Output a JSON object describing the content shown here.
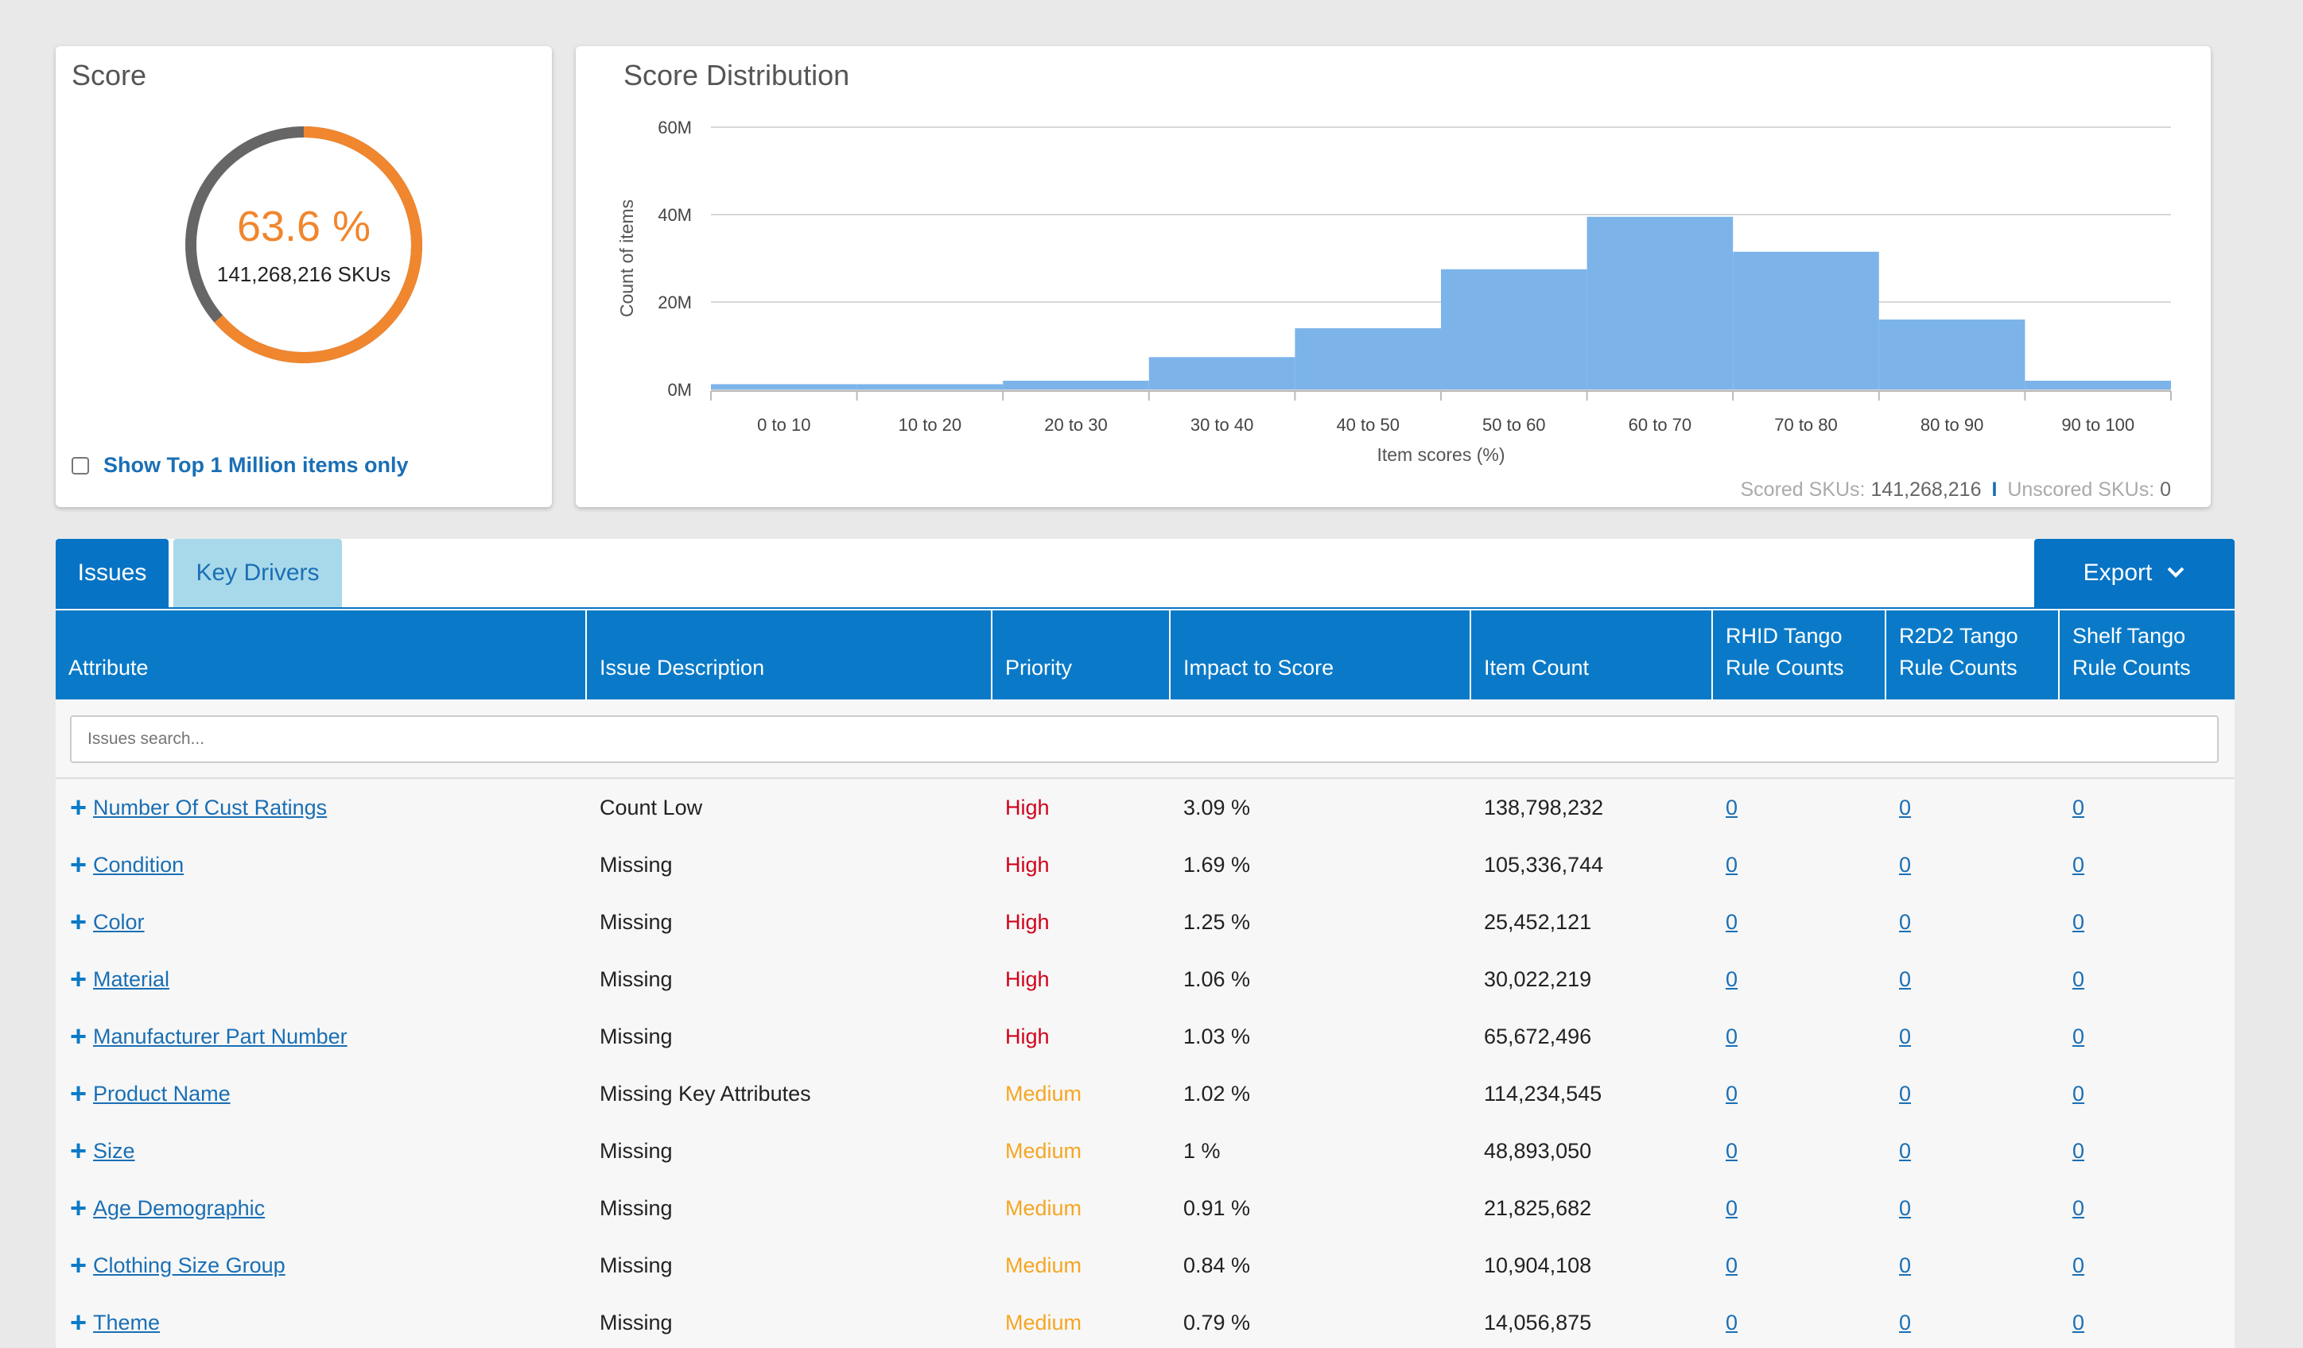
{
  "score": {
    "title": "Score",
    "percent_label": "63.6 %",
    "percent": 63.6,
    "skus_label": "141,268,216 SKUs",
    "top_toggle_label": "Show Top 1 Million items only",
    "colors": {
      "filled": "#f0862e",
      "rest": "#666666"
    }
  },
  "distribution": {
    "title": "Score Distribution",
    "footer": {
      "scored_label": "Scored SKUs:",
      "scored_value": "141,268,216",
      "separator": "I",
      "unscored_label": "Unscored SKUs:",
      "unscored_value": "0"
    }
  },
  "chart_data": {
    "type": "bar",
    "title": "Score Distribution",
    "xlabel": "Item scores (%)",
    "ylabel": "Count of items",
    "categories": [
      "0 to 10",
      "10 to 20",
      "20 to 30",
      "30 to 40",
      "40 to 50",
      "50 to 60",
      "60 to 70",
      "70 to 80",
      "80 to 90",
      "90 to 100"
    ],
    "values": [
      1.2,
      1.2,
      2.0,
      7.4,
      14.0,
      27.5,
      39.5,
      31.5,
      16.0,
      2.0
    ],
    "value_units": "M",
    "yticks": [
      "0M",
      "20M",
      "40M",
      "60M"
    ],
    "ylim": [
      0,
      60
    ],
    "grid": true,
    "bar_color": "#7cb4ea"
  },
  "tabs": {
    "issues": "Issues",
    "key_drivers": "Key Drivers",
    "export": "Export"
  },
  "table": {
    "headers": [
      "Attribute",
      "Issue Description",
      "Priority",
      "Impact to Score",
      "Item Count",
      "RHID Tango Rule Counts",
      "R2D2 Tango Rule Counts",
      "Shelf Tango Rule Counts"
    ],
    "search_placeholder": "Issues search...",
    "priority_colors": {
      "High": "#d0021b",
      "Medium": "#f5a623"
    },
    "rows": [
      {
        "attribute": "Number Of Cust Ratings",
        "issue": "Count Low",
        "priority": "High",
        "impact": "3.09 %",
        "count": "138,798,232",
        "rhid": "0",
        "r2d2": "0",
        "shelf": "0"
      },
      {
        "attribute": "Condition",
        "issue": "Missing",
        "priority": "High",
        "impact": "1.69 %",
        "count": "105,336,744",
        "rhid": "0",
        "r2d2": "0",
        "shelf": "0"
      },
      {
        "attribute": "Color",
        "issue": "Missing",
        "priority": "High",
        "impact": "1.25 %",
        "count": "25,452,121",
        "rhid": "0",
        "r2d2": "0",
        "shelf": "0"
      },
      {
        "attribute": "Material",
        "issue": "Missing",
        "priority": "High",
        "impact": "1.06 %",
        "count": "30,022,219",
        "rhid": "0",
        "r2d2": "0",
        "shelf": "0"
      },
      {
        "attribute": "Manufacturer Part Number",
        "issue": "Missing",
        "priority": "High",
        "impact": "1.03 %",
        "count": "65,672,496",
        "rhid": "0",
        "r2d2": "0",
        "shelf": "0"
      },
      {
        "attribute": "Product Name",
        "issue": "Missing Key Attributes",
        "priority": "Medium",
        "impact": "1.02 %",
        "count": "114,234,545",
        "rhid": "0",
        "r2d2": "0",
        "shelf": "0"
      },
      {
        "attribute": "Size",
        "issue": "Missing",
        "priority": "Medium",
        "impact": "1 %",
        "count": "48,893,050",
        "rhid": "0",
        "r2d2": "0",
        "shelf": "0"
      },
      {
        "attribute": "Age Demographic",
        "issue": "Missing",
        "priority": "Medium",
        "impact": "0.91 %",
        "count": "21,825,682",
        "rhid": "0",
        "r2d2": "0",
        "shelf": "0"
      },
      {
        "attribute": "Clothing Size Group",
        "issue": "Missing",
        "priority": "Medium",
        "impact": "0.84 %",
        "count": "10,904,108",
        "rhid": "0",
        "r2d2": "0",
        "shelf": "0"
      },
      {
        "attribute": "Theme",
        "issue": "Missing",
        "priority": "Medium",
        "impact": "0.79 %",
        "count": "14,056,875",
        "rhid": "0",
        "r2d2": "0",
        "shelf": "0"
      }
    ]
  }
}
